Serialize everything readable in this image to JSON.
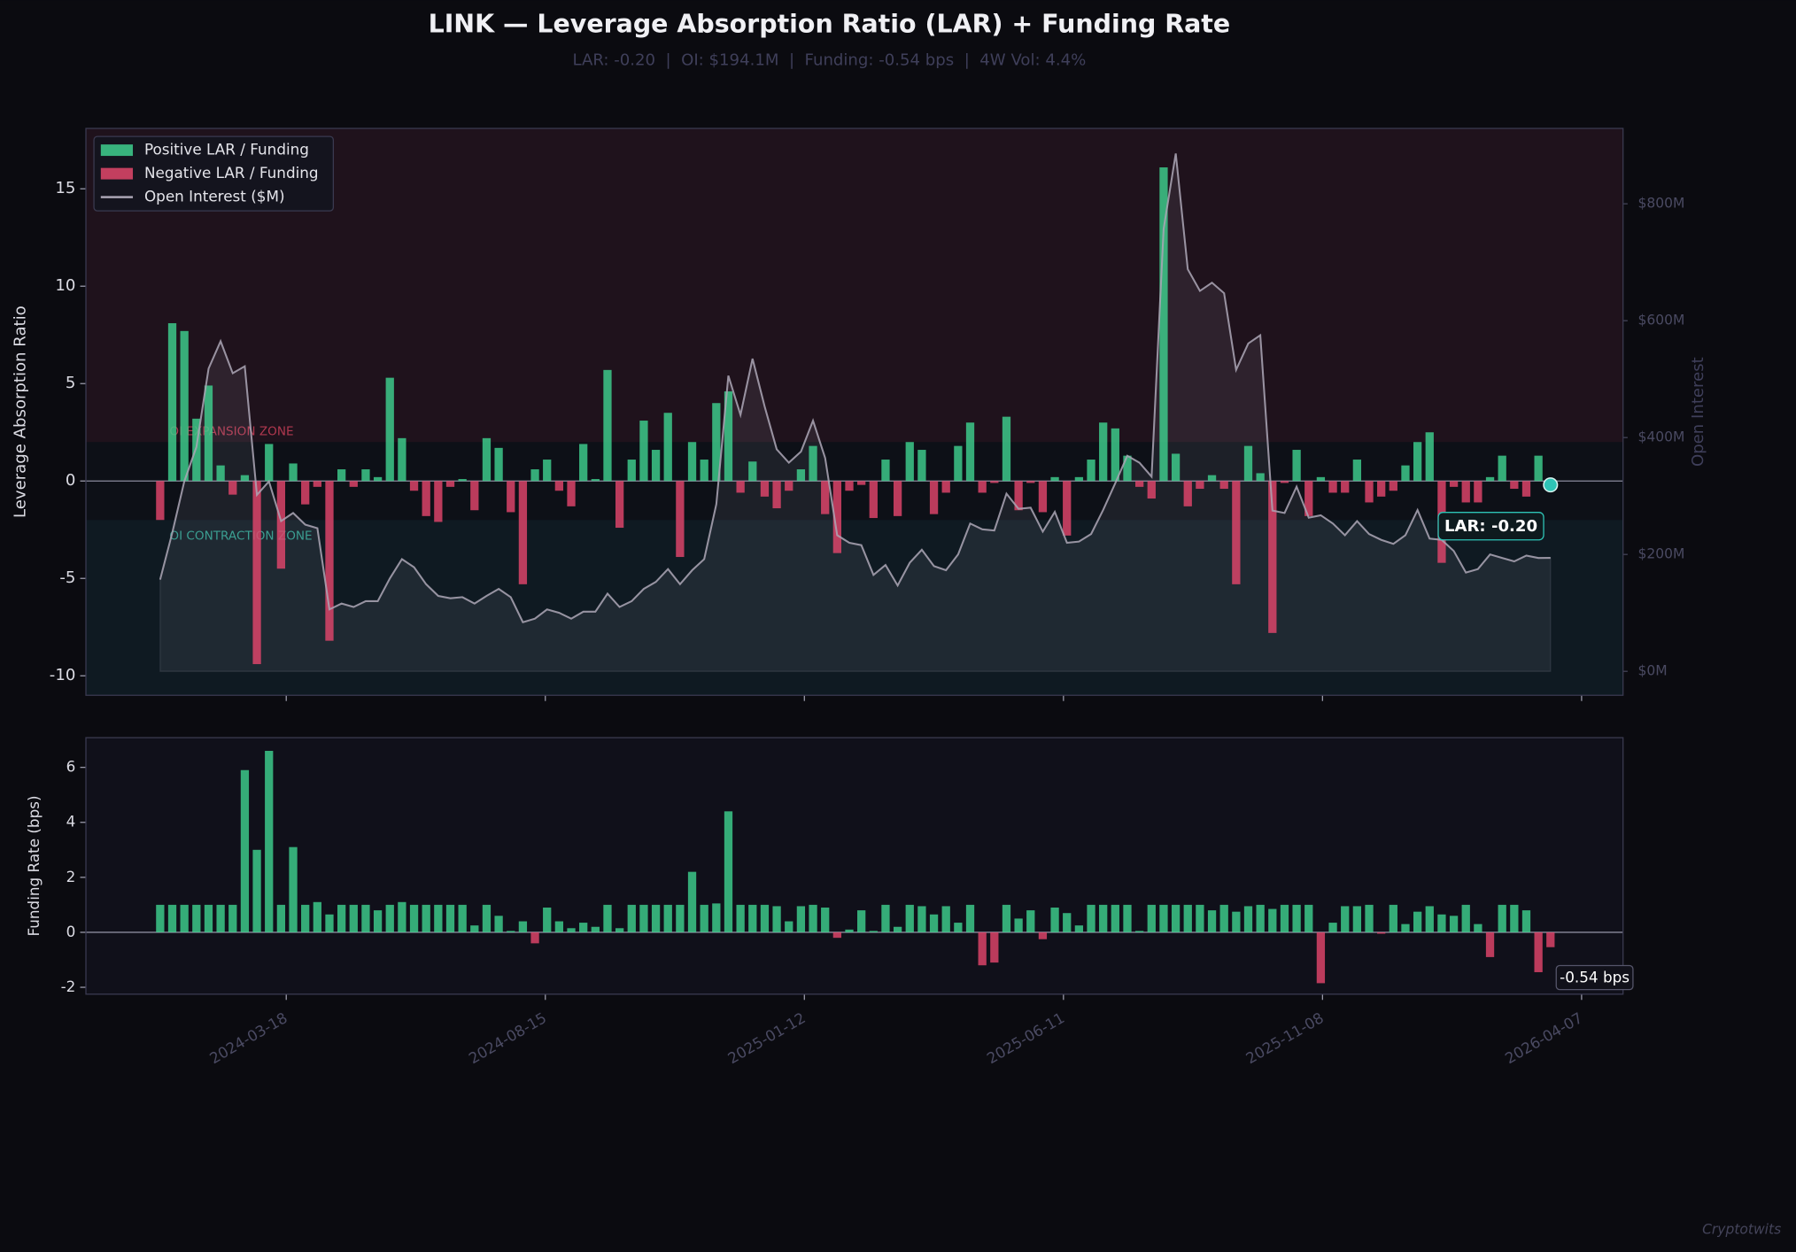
{
  "chart_data": [
    {
      "type": "bar",
      "title": "LINK — Leverage Absorption Ratio (LAR) + Funding Rate",
      "subtitle": "LAR: -0.20  |  OI: $194.1M  |  Funding: -0.54 bps  |  4W Vol: 4.4%",
      "ylabel": "Leverage Absorption Ratio",
      "y2label": "Open Interest",
      "annotation": "LAR: -0.20",
      "legend": [
        {
          "name": "Positive LAR / Funding",
          "color": "#3ecf8e"
        },
        {
          "name": "Negative LAR / Funding",
          "color": "#e2466b"
        },
        {
          "name": "Open Interest ($M)",
          "color": "#aaa4b4"
        }
      ],
      "zones": [
        {
          "label": "OI EXPANSION ZONE",
          "threshold": 2,
          "side": "above",
          "color": "#1f121c",
          "text_color": "#b0384f"
        },
        {
          "label": "OI CONTRACTION ZONE",
          "threshold": -2,
          "side": "below",
          "color": "#0f1a22",
          "text_color": "#2e9a8a"
        }
      ],
      "xlim": [
        "2023-11-23",
        "2026-05-01"
      ],
      "ylim": [
        -11,
        18.1
      ],
      "yticks": [
        -10,
        -5,
        0,
        5,
        10,
        15
      ],
      "y2lim": [
        -41,
        929
      ],
      "y2ticks": [
        {
          "value": 0,
          "label": "$0M"
        },
        {
          "value": 200,
          "label": "$200M"
        },
        {
          "value": 400,
          "label": "$400M"
        },
        {
          "value": 600,
          "label": "$600M"
        },
        {
          "value": 800,
          "label": "$800M"
        }
      ],
      "x": [
        "2024-01-05",
        "2024-01-12",
        "2024-01-19",
        "2024-01-26",
        "2024-02-02",
        "2024-02-09",
        "2024-02-16",
        "2024-02-23",
        "2024-03-01",
        "2024-03-08",
        "2024-03-15",
        "2024-03-22",
        "2024-03-29",
        "2024-04-05",
        "2024-04-12",
        "2024-04-19",
        "2024-04-26",
        "2024-05-03",
        "2024-05-10",
        "2024-05-17",
        "2024-05-24",
        "2024-05-31",
        "2024-06-07",
        "2024-06-14",
        "2024-06-21",
        "2024-06-28",
        "2024-07-05",
        "2024-07-12",
        "2024-07-19",
        "2024-07-26",
        "2024-08-02",
        "2024-08-09",
        "2024-08-16",
        "2024-08-23",
        "2024-08-30",
        "2024-09-06",
        "2024-09-13",
        "2024-09-20",
        "2024-09-27",
        "2024-10-04",
        "2024-10-11",
        "2024-10-18",
        "2024-10-25",
        "2024-11-01",
        "2024-11-08",
        "2024-11-15",
        "2024-11-22",
        "2024-11-29",
        "2024-12-06",
        "2024-12-13",
        "2024-12-20",
        "2024-12-27",
        "2025-01-03",
        "2025-01-10",
        "2025-01-17",
        "2025-01-24",
        "2025-01-31",
        "2025-02-07",
        "2025-02-14",
        "2025-02-21",
        "2025-02-28",
        "2025-03-07",
        "2025-03-14",
        "2025-03-21",
        "2025-03-28",
        "2025-04-04",
        "2025-04-11",
        "2025-04-18",
        "2025-04-25",
        "2025-05-02",
        "2025-05-09",
        "2025-05-16",
        "2025-05-23",
        "2025-05-30",
        "2025-06-06",
        "2025-06-13",
        "2025-06-20",
        "2025-06-27",
        "2025-07-04",
        "2025-07-11",
        "2025-07-18",
        "2025-07-25",
        "2025-08-01",
        "2025-08-08",
        "2025-08-15",
        "2025-08-22",
        "2025-08-29",
        "2025-09-05",
        "2025-09-12",
        "2025-09-19",
        "2025-09-26",
        "2025-10-03",
        "2025-10-10",
        "2025-10-17",
        "2025-10-24",
        "2025-10-31",
        "2025-11-07",
        "2025-11-14",
        "2025-11-21",
        "2025-11-28",
        "2025-12-05",
        "2025-12-12",
        "2025-12-19",
        "2025-12-26",
        "2026-01-02",
        "2026-01-09",
        "2026-01-16",
        "2026-01-23",
        "2026-01-30",
        "2026-02-06",
        "2026-02-13",
        "2026-02-20",
        "2026-02-27",
        "2026-03-06",
        "2026-03-13",
        "2026-03-20"
      ],
      "values": [
        -2.0,
        8.1,
        7.7,
        3.2,
        4.9,
        0.8,
        -0.7,
        0.3,
        -9.4,
        1.9,
        -4.5,
        0.9,
        -1.2,
        -0.3,
        -8.2,
        0.6,
        -0.3,
        0.6,
        0.2,
        5.3,
        2.2,
        -0.5,
        -1.8,
        -2.1,
        -0.3,
        0.1,
        -1.5,
        2.2,
        1.7,
        -1.6,
        -5.3,
        0.6,
        1.1,
        -0.5,
        -1.3,
        1.9,
        0.1,
        5.7,
        -2.4,
        1.1,
        3.1,
        1.6,
        3.5,
        -3.9,
        2.0,
        1.1,
        4.0,
        4.6,
        -0.6,
        1.0,
        -0.8,
        -1.4,
        -0.5,
        0.6,
        1.8,
        -1.7,
        -3.7,
        -0.5,
        -0.2,
        -1.9,
        1.1,
        -1.8,
        2.0,
        1.6,
        -1.7,
        -0.6,
        1.8,
        3.0,
        -0.6,
        -0.1,
        3.3,
        -1.5,
        -0.1,
        -1.6,
        0.2,
        -2.8,
        0.2,
        1.1,
        3.0,
        2.7,
        1.3,
        -0.3,
        -0.9,
        16.1,
        1.4,
        -1.3,
        -0.4,
        0.3,
        -0.4,
        -5.3,
        1.8,
        0.4,
        -7.8,
        -0.1,
        1.6,
        -1.8,
        0.2,
        -0.6,
        -0.6,
        1.1,
        -1.1,
        -0.8,
        -0.5,
        0.8,
        2.0,
        2.5,
        -4.2,
        -0.3,
        -1.1,
        -1.1,
        0.2,
        1.3,
        -0.4,
        -0.8,
        1.3,
        -0.2
      ],
      "oi_values": [
        157,
        237,
        325,
        384,
        518,
        565,
        510,
        522,
        302,
        325,
        257,
        271,
        251,
        245,
        106,
        116,
        110,
        120,
        120,
        159,
        192,
        178,
        149,
        129,
        125,
        127,
        116,
        129,
        141,
        127,
        84,
        90,
        106,
        100,
        90,
        102,
        102,
        133,
        110,
        120,
        141,
        153,
        175,
        149,
        173,
        192,
        286,
        506,
        439,
        535,
        453,
        380,
        357,
        376,
        429,
        365,
        233,
        220,
        216,
        165,
        182,
        147,
        186,
        208,
        180,
        173,
        200,
        253,
        243,
        241,
        304,
        278,
        280,
        239,
        273,
        220,
        222,
        235,
        276,
        322,
        369,
        357,
        333,
        757,
        886,
        688,
        651,
        665,
        647,
        516,
        561,
        575,
        275,
        271,
        316,
        263,
        267,
        253,
        233,
        257,
        235,
        225,
        218,
        233,
        276,
        227,
        225,
        206,
        169,
        175,
        200,
        194,
        188,
        198,
        194,
        194.1
      ]
    },
    {
      "type": "bar",
      "ylabel": "Funding Rate (bps)",
      "annotation": "-0.54 bps",
      "xlim": [
        "2023-11-23",
        "2026-05-01"
      ],
      "xticks": [
        "2024-03-18",
        "2024-08-15",
        "2025-01-12",
        "2025-06-11",
        "2025-11-08",
        "2026-04-07"
      ],
      "ylim": [
        -2.25,
        7.08
      ],
      "yticks": [
        -2,
        0,
        2,
        4,
        6
      ],
      "x": [
        "2024-01-05",
        "2024-01-12",
        "2024-01-19",
        "2024-01-26",
        "2024-02-02",
        "2024-02-09",
        "2024-02-16",
        "2024-02-23",
        "2024-03-01",
        "2024-03-08",
        "2024-03-15",
        "2024-03-22",
        "2024-03-29",
        "2024-04-05",
        "2024-04-12",
        "2024-04-19",
        "2024-04-26",
        "2024-05-03",
        "2024-05-10",
        "2024-05-17",
        "2024-05-24",
        "2024-05-31",
        "2024-06-07",
        "2024-06-14",
        "2024-06-21",
        "2024-06-28",
        "2024-07-05",
        "2024-07-12",
        "2024-07-19",
        "2024-07-26",
        "2024-08-02",
        "2024-08-09",
        "2024-08-16",
        "2024-08-23",
        "2024-08-30",
        "2024-09-06",
        "2024-09-13",
        "2024-09-20",
        "2024-09-27",
        "2024-10-04",
        "2024-10-11",
        "2024-10-18",
        "2024-10-25",
        "2024-11-01",
        "2024-11-08",
        "2024-11-15",
        "2024-11-22",
        "2024-11-29",
        "2024-12-06",
        "2024-12-13",
        "2024-12-20",
        "2024-12-27",
        "2025-01-03",
        "2025-01-10",
        "2025-01-17",
        "2025-01-24",
        "2025-01-31",
        "2025-02-07",
        "2025-02-14",
        "2025-02-21",
        "2025-02-28",
        "2025-03-07",
        "2025-03-14",
        "2025-03-21",
        "2025-03-28",
        "2025-04-04",
        "2025-04-11",
        "2025-04-18",
        "2025-04-25",
        "2025-05-02",
        "2025-05-09",
        "2025-05-16",
        "2025-05-23",
        "2025-05-30",
        "2025-06-06",
        "2025-06-13",
        "2025-06-20",
        "2025-06-27",
        "2025-07-04",
        "2025-07-11",
        "2025-07-18",
        "2025-07-25",
        "2025-08-01",
        "2025-08-08",
        "2025-08-15",
        "2025-08-22",
        "2025-08-29",
        "2025-09-05",
        "2025-09-12",
        "2025-09-19",
        "2025-09-26",
        "2025-10-03",
        "2025-10-10",
        "2025-10-17",
        "2025-10-24",
        "2025-10-31",
        "2025-11-07",
        "2025-11-14",
        "2025-11-21",
        "2025-11-28",
        "2025-12-05",
        "2025-12-12",
        "2025-12-19",
        "2025-12-26",
        "2026-01-02",
        "2026-01-09",
        "2026-01-16",
        "2026-01-23",
        "2026-01-30",
        "2026-02-06",
        "2026-02-13",
        "2026-02-20",
        "2026-02-27",
        "2026-03-06",
        "2026-03-13",
        "2026-03-20"
      ],
      "values": [
        1,
        1,
        1,
        1,
        1,
        1,
        1,
        5.9,
        3.0,
        6.6,
        1,
        3.1,
        1,
        1.1,
        0.65,
        1,
        1,
        1,
        0.8,
        1,
        1.1,
        1,
        1,
        1,
        1,
        1,
        0.25,
        1,
        0.6,
        0.05,
        0.4,
        -0.4,
        0.9,
        0.4,
        0.15,
        0.35,
        0.2,
        1,
        0.15,
        1,
        1,
        1,
        1,
        1,
        2.2,
        1,
        1.05,
        4.4,
        1,
        1,
        1,
        0.95,
        0.4,
        0.95,
        1,
        0.9,
        -0.2,
        0.1,
        0.8,
        0.05,
        1,
        0.2,
        1,
        0.95,
        0.65,
        0.95,
        0.35,
        1,
        -1.2,
        -1.1,
        1,
        0.5,
        0.8,
        -0.25,
        0.9,
        0.7,
        0.25,
        1,
        1,
        1,
        1,
        0.05,
        1,
        1,
        1,
        1,
        1,
        0.8,
        1,
        0.75,
        0.95,
        1,
        0.85,
        1,
        1,
        1,
        -1.85,
        0.35,
        0.95,
        0.95,
        1,
        -0.05,
        1,
        0.3,
        0.75,
        0.95,
        0.65,
        0.6,
        1,
        0.3,
        -0.9,
        1,
        1,
        0.8,
        -1.45,
        -0.54
      ]
    }
  ],
  "watermark": "Cryptotwits"
}
